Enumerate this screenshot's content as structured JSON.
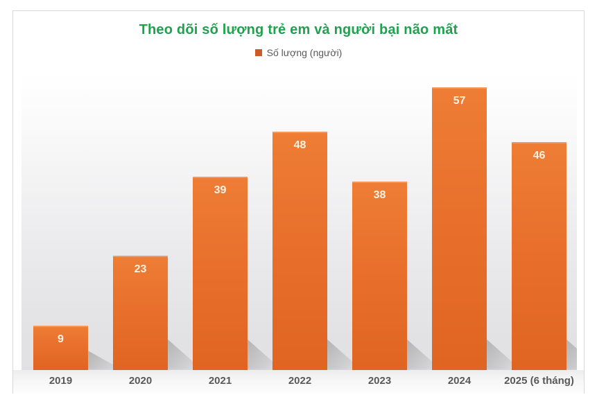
{
  "chart_data": {
    "type": "bar",
    "title": "Theo dõi số lượng trẻ em và người bại não mất",
    "legend": [
      {
        "label": "Số lượng (người)",
        "color": "#cb5b28"
      }
    ],
    "legend_position": "top",
    "categories": [
      "2019",
      "2020",
      "2021",
      "2022",
      "2023",
      "2024",
      "2025 (6 tháng)"
    ],
    "series": [
      {
        "name": "Số lượng (người)",
        "values": [
          9,
          23,
          39,
          48,
          38,
          57,
          46
        ]
      }
    ],
    "data_labels": [
      "9",
      "23",
      "39",
      "48",
      "38",
      "57",
      "46"
    ],
    "xlabel": "",
    "ylabel": "",
    "ylim": [
      0,
      60
    ],
    "grid": false,
    "colors": {
      "title": "#1fa14d",
      "bar": "#e8702c",
      "bar_top": "#ee7d35",
      "bar_bottom": "#e06422",
      "data_label": "#fbf2e3",
      "axis_label": "#595959",
      "legend_text": "#595959",
      "frame_border": "#d7d7d7",
      "plot_bg_top": "#ffffff",
      "plot_bg_bottom": "#e1e1e3"
    }
  }
}
